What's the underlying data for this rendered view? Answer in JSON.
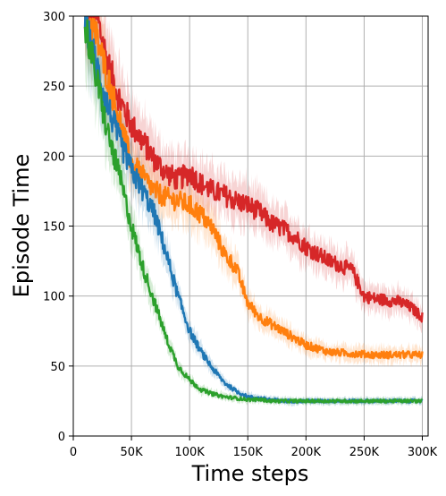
{
  "chart_data": {
    "type": "line",
    "title": "",
    "xlabel": "Time steps",
    "ylabel": "Episode Time",
    "xlim": [
      0,
      305000
    ],
    "ylim": [
      0,
      300
    ],
    "grid": true,
    "x_ticks": [
      0,
      50000,
      100000,
      150000,
      200000,
      250000,
      300000
    ],
    "x_tick_labels": [
      "0",
      "50K",
      "100K",
      "150K",
      "200K",
      "250K",
      "300K"
    ],
    "y_ticks": [
      0,
      50,
      100,
      150,
      200,
      250,
      300
    ],
    "y_tick_labels": [
      "0",
      "50",
      "100",
      "150",
      "200",
      "250",
      "300"
    ],
    "series": [
      {
        "color": "#d62728",
        "x": [
          10000,
          20000,
          30000,
          40000,
          50000,
          60000,
          70000,
          80000,
          90000,
          100000,
          110000,
          120000,
          130000,
          140000,
          150000,
          160000,
          170000,
          180000,
          190000,
          200000,
          210000,
          220000,
          230000,
          240000,
          250000,
          260000,
          270000,
          280000,
          290000,
          300000
        ],
        "y": [
          305,
          300,
          265,
          240,
          222,
          210,
          197,
          188,
          183,
          188,
          180,
          175,
          172,
          168,
          165,
          160,
          152,
          148,
          143,
          135,
          130,
          125,
          122,
          118,
          100,
          98,
          97,
          96,
          92,
          85
        ]
      },
      {
        "color": "#ff7f0e",
        "x": [
          10000,
          20000,
          30000,
          40000,
          50000,
          60000,
          70000,
          80000,
          90000,
          100000,
          110000,
          120000,
          130000,
          140000,
          150000,
          160000,
          170000,
          180000,
          190000,
          200000,
          220000,
          240000,
          260000,
          280000,
          300000
        ],
        "y": [
          300,
          285,
          255,
          225,
          195,
          185,
          175,
          170,
          168,
          165,
          158,
          148,
          130,
          120,
          95,
          85,
          80,
          75,
          70,
          65,
          60,
          59,
          58,
          58,
          58
        ]
      },
      {
        "color": "#1f77b4",
        "x": [
          10000,
          20000,
          30000,
          40000,
          50000,
          60000,
          70000,
          80000,
          90000,
          100000,
          110000,
          120000,
          130000,
          140000,
          150000,
          160000,
          170000,
          180000,
          190000,
          200000,
          250000,
          300000
        ],
        "y": [
          295,
          265,
          235,
          210,
          190,
          175,
          158,
          130,
          100,
          75,
          60,
          48,
          38,
          32,
          28,
          27,
          26,
          25,
          25,
          25,
          25,
          25
        ]
      },
      {
        "color": "#2ca02c",
        "x": [
          10000,
          20000,
          30000,
          40000,
          50000,
          60000,
          70000,
          80000,
          90000,
          100000,
          110000,
          120000,
          130000,
          140000,
          150000,
          160000,
          170000,
          180000,
          190000,
          200000,
          250000,
          300000
        ],
        "y": [
          295,
          255,
          215,
          185,
          150,
          120,
          95,
          70,
          50,
          40,
          33,
          30,
          28,
          27,
          26,
          26,
          25,
          25,
          25,
          25,
          25,
          25
        ]
      }
    ]
  }
}
